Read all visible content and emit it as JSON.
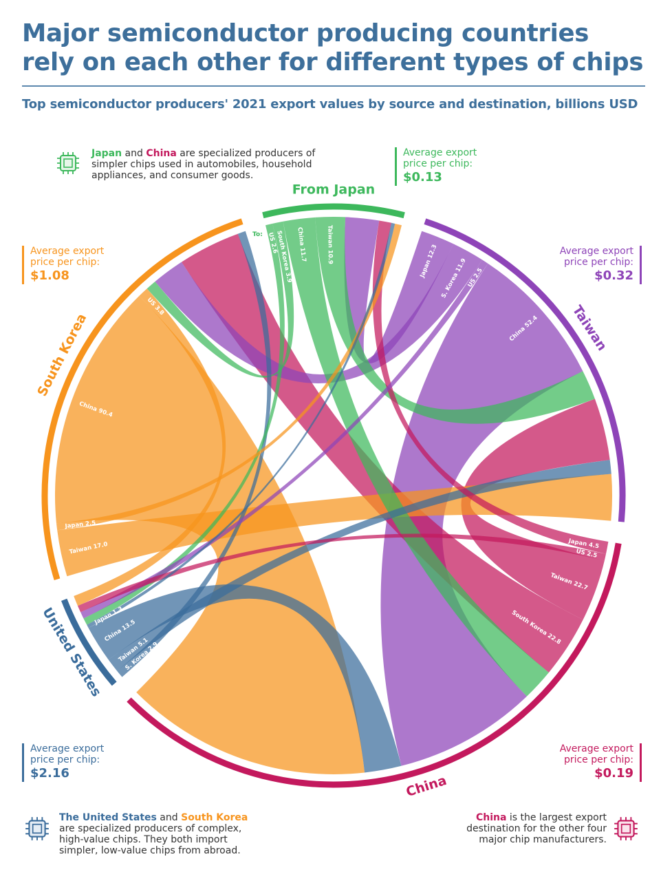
{
  "title": {
    "line1": "Major semiconductor producing countries",
    "line2": "rely on each other for different types of chips"
  },
  "subtitle": "Top semiconductor producers' 2021 export values by source and destination, billions USD",
  "colors": {
    "japan": "#3db85c",
    "taiwan": "#8e44b8",
    "south_korea": "#f7941d",
    "united_states": "#3a6c9b",
    "china": "#c3195d",
    "title": "#3d6f9b"
  },
  "notes": {
    "top": {
      "bold1": "Japan",
      "mid1": " and ",
      "bold2": "China",
      "rest": " are specialized producers of simpler chips used in automobiles, household appliances, and consumer goods.",
      "icon": "chip-icon-green"
    },
    "bottom_left": {
      "bold1": "The United States",
      "mid1": " and ",
      "bold2": "South Korea",
      "rest": " are specialized producers of complex, high-value chips. They both import simpler, low-value chips from abroad.",
      "icon": "chip-icon-blue"
    },
    "bottom_right": {
      "bold1": "China",
      "rest": " is the largest export destination for the other four major chip manufacturers.",
      "icon": "chip-icon-red"
    }
  },
  "prices": {
    "label": "Average export price per chip:",
    "japan": "$0.13",
    "south_korea": "$1.08",
    "taiwan": "$0.32",
    "united_states": "$2.16",
    "china": "$0.19"
  },
  "to_label": "To:",
  "chart_data": {
    "type": "chord",
    "units": "billions USD",
    "year": 2021,
    "groups": [
      {
        "key": "japan",
        "label": "From Japan"
      },
      {
        "key": "taiwan",
        "label": "Taiwan"
      },
      {
        "key": "china",
        "label": "China"
      },
      {
        "key": "united_states",
        "label": "United States"
      },
      {
        "key": "south_korea",
        "label": "South Korea"
      }
    ],
    "flows": [
      {
        "from": "japan",
        "to": "united_states",
        "to_label": "US",
        "value": 2.6
      },
      {
        "from": "japan",
        "to": "south_korea",
        "to_label": "South Korea",
        "value": 3.9
      },
      {
        "from": "japan",
        "to": "china",
        "to_label": "China",
        "value": 11.7
      },
      {
        "from": "japan",
        "to": "taiwan",
        "to_label": "Taiwan",
        "value": 10.9
      },
      {
        "from": "taiwan",
        "to": "japan",
        "to_label": "Japan",
        "value": 12.3
      },
      {
        "from": "taiwan",
        "to": "south_korea",
        "to_label": "S. Korea",
        "value": 11.9
      },
      {
        "from": "taiwan",
        "to": "united_states",
        "to_label": "US",
        "value": 2.5
      },
      {
        "from": "taiwan",
        "to": "china",
        "to_label": "China",
        "value": 52.4
      },
      {
        "from": "china",
        "to": "japan",
        "to_label": "Japan",
        "value": 4.5
      },
      {
        "from": "china",
        "to": "united_states",
        "to_label": "US",
        "value": 2.5
      },
      {
        "from": "china",
        "to": "taiwan",
        "to_label": "Taiwan",
        "value": 22.7
      },
      {
        "from": "china",
        "to": "south_korea",
        "to_label": "South Korea",
        "value": 22.8
      },
      {
        "from": "united_states",
        "to": "south_korea",
        "to_label": "S. Korea",
        "value": 2.9
      },
      {
        "from": "united_states",
        "to": "taiwan",
        "to_label": "Taiwan",
        "value": 5.1
      },
      {
        "from": "united_states",
        "to": "china",
        "to_label": "China",
        "value": 13.5
      },
      {
        "from": "united_states",
        "to": "japan",
        "to_label": "Japan",
        "value": 1.3
      },
      {
        "from": "south_korea",
        "to": "taiwan",
        "to_label": "Taiwan",
        "value": 17.0
      },
      {
        "from": "south_korea",
        "to": "japan",
        "to_label": "Japan",
        "value": 2.5
      },
      {
        "from": "south_korea",
        "to": "china",
        "to_label": "China",
        "value": 90.4
      },
      {
        "from": "south_korea",
        "to": "united_states",
        "to_label": "US",
        "value": 3.8
      }
    ]
  }
}
